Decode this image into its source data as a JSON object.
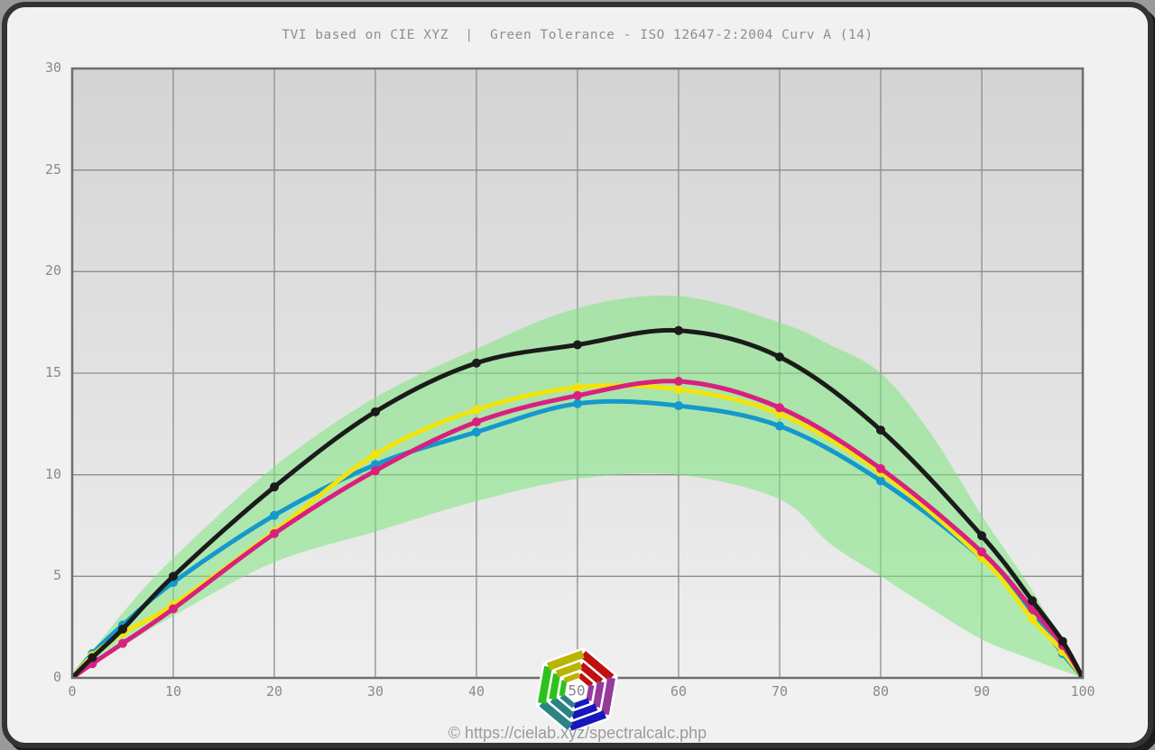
{
  "frame": {
    "outer_background": "#9a9a9a",
    "border_color": "#333333",
    "page_background": "#f1f1f1"
  },
  "title": "TVI based on CIE XYZ  |  Green Tolerance - ISO 12647-2:2004 Curv A (14)",
  "footer": "© https://cielab.xyz/spectralcalc.php",
  "logo": {
    "center_label": "50",
    "label_color": "#888888",
    "segment_colors": [
      "#c01010",
      "#96399b",
      "#1717bd",
      "#2c8383",
      "#2cc21c",
      "#b9b400"
    ]
  },
  "chart_data": {
    "type": "line",
    "title": "TVI based on CIE XYZ  |  Green Tolerance - ISO 12647-2:2004 Curv A (14)",
    "xlabel": "",
    "ylabel": "",
    "xlim": [
      0,
      100
    ],
    "ylim": [
      0,
      30
    ],
    "x_ticks": [
      0,
      10,
      20,
      30,
      40,
      50,
      60,
      70,
      80,
      90,
      100
    ],
    "y_ticks": [
      0,
      5,
      10,
      15,
      20,
      25,
      30
    ],
    "grid": true,
    "grid_color": "#8d8d8d",
    "axis_color": "#6e6e6e",
    "tick_label_color": "#8a8a8a",
    "plot_bg_top": "#d4d4d4",
    "plot_bg_bottom": "#efefef",
    "x": [
      0,
      2,
      5,
      10,
      20,
      30,
      40,
      50,
      60,
      70,
      80,
      90,
      95,
      98,
      100
    ],
    "series": [
      {
        "name": "cyan",
        "color": "#1598cd",
        "values": [
          0,
          1.2,
          2.6,
          4.7,
          8.0,
          10.5,
          12.1,
          13.5,
          13.4,
          12.4,
          9.7,
          5.9,
          3.1,
          1.2,
          0
        ]
      },
      {
        "name": "yellow",
        "color": "#f2e30a",
        "values": [
          0,
          1.1,
          2.2,
          3.6,
          7.2,
          11.0,
          13.2,
          14.3,
          14.2,
          13.0,
          10.1,
          5.9,
          2.9,
          1.3,
          0
        ]
      },
      {
        "name": "magenta",
        "color": "#d9207f",
        "values": [
          0,
          0.7,
          1.7,
          3.4,
          7.1,
          10.2,
          12.6,
          13.9,
          14.6,
          13.3,
          10.3,
          6.2,
          3.4,
          1.6,
          0
        ]
      },
      {
        "name": "black",
        "color": "#1b1b1b",
        "values": [
          0,
          1.0,
          2.4,
          5.0,
          9.4,
          13.1,
          15.5,
          16.4,
          17.1,
          15.8,
          12.2,
          7.0,
          3.8,
          1.8,
          0
        ]
      }
    ],
    "tolerance_band": {
      "label": "Green Tolerance - ISO 12647-2:2004 Curv A (14)",
      "color": "#7de57d",
      "opacity": 0.55,
      "x": [
        0,
        5,
        10,
        20,
        30,
        40,
        50,
        60,
        70,
        75,
        80,
        85,
        90,
        95,
        100
      ],
      "upper": [
        0,
        3.2,
        5.9,
        10.4,
        13.8,
        16.2,
        18.2,
        18.8,
        17.5,
        16.4,
        15.0,
        12.0,
        8.0,
        4.3,
        0
      ],
      "lower": [
        0,
        1.55,
        3.05,
        5.7,
        7.2,
        8.7,
        9.8,
        10.0,
        8.8,
        6.6,
        5.0,
        3.4,
        1.9,
        0.9,
        0
      ]
    }
  }
}
